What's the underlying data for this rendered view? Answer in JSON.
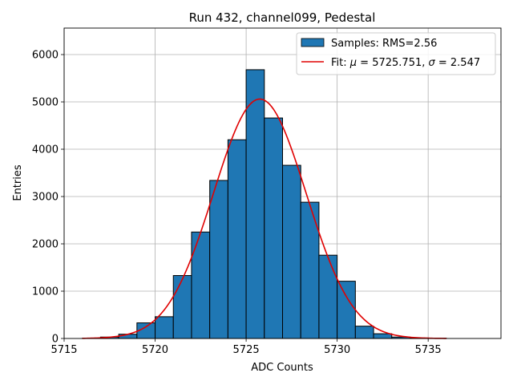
{
  "chart_data": {
    "type": "bar",
    "title": "Run 432, channel099, Pedestal",
    "xlabel": "ADC Counts",
    "ylabel": "Entries",
    "xlim": [
      5715,
      5739
    ],
    "ylim": [
      0,
      6560
    ],
    "xticks": [
      5715,
      5720,
      5725,
      5730,
      5735
    ],
    "yticks": [
      0,
      1000,
      2000,
      3000,
      4000,
      5000,
      6000
    ],
    "grid": true,
    "legend_position": "top-right",
    "histogram": {
      "name": "Samples: RMS=2.56",
      "color": "#1f77b4",
      "edge_color": "#000000",
      "bin_edges": [
        5716,
        5717,
        5718,
        5719,
        5720,
        5721,
        5722,
        5723,
        5724,
        5725,
        5726,
        5727,
        5728,
        5729,
        5730,
        5731,
        5732,
        5733,
        5734,
        5735,
        5736
      ],
      "counts": [
        5,
        30,
        90,
        330,
        460,
        1330,
        2250,
        3340,
        4200,
        5680,
        4660,
        3660,
        2880,
        1760,
        1210,
        260,
        100,
        30,
        10,
        5
      ]
    },
    "fit": {
      "name": "Fit: μ = 5725.751, σ = 2.547",
      "label_prefix": "Fit: ",
      "mu_symbol": "μ",
      "mu_text": " = 5725.751, ",
      "sigma_symbol": "σ",
      "sigma_text": " = 2.547",
      "color": "#e00000",
      "mu": 5725.751,
      "sigma": 2.547,
      "amplitude": 5060,
      "x_range": [
        5716,
        5736
      ]
    }
  }
}
